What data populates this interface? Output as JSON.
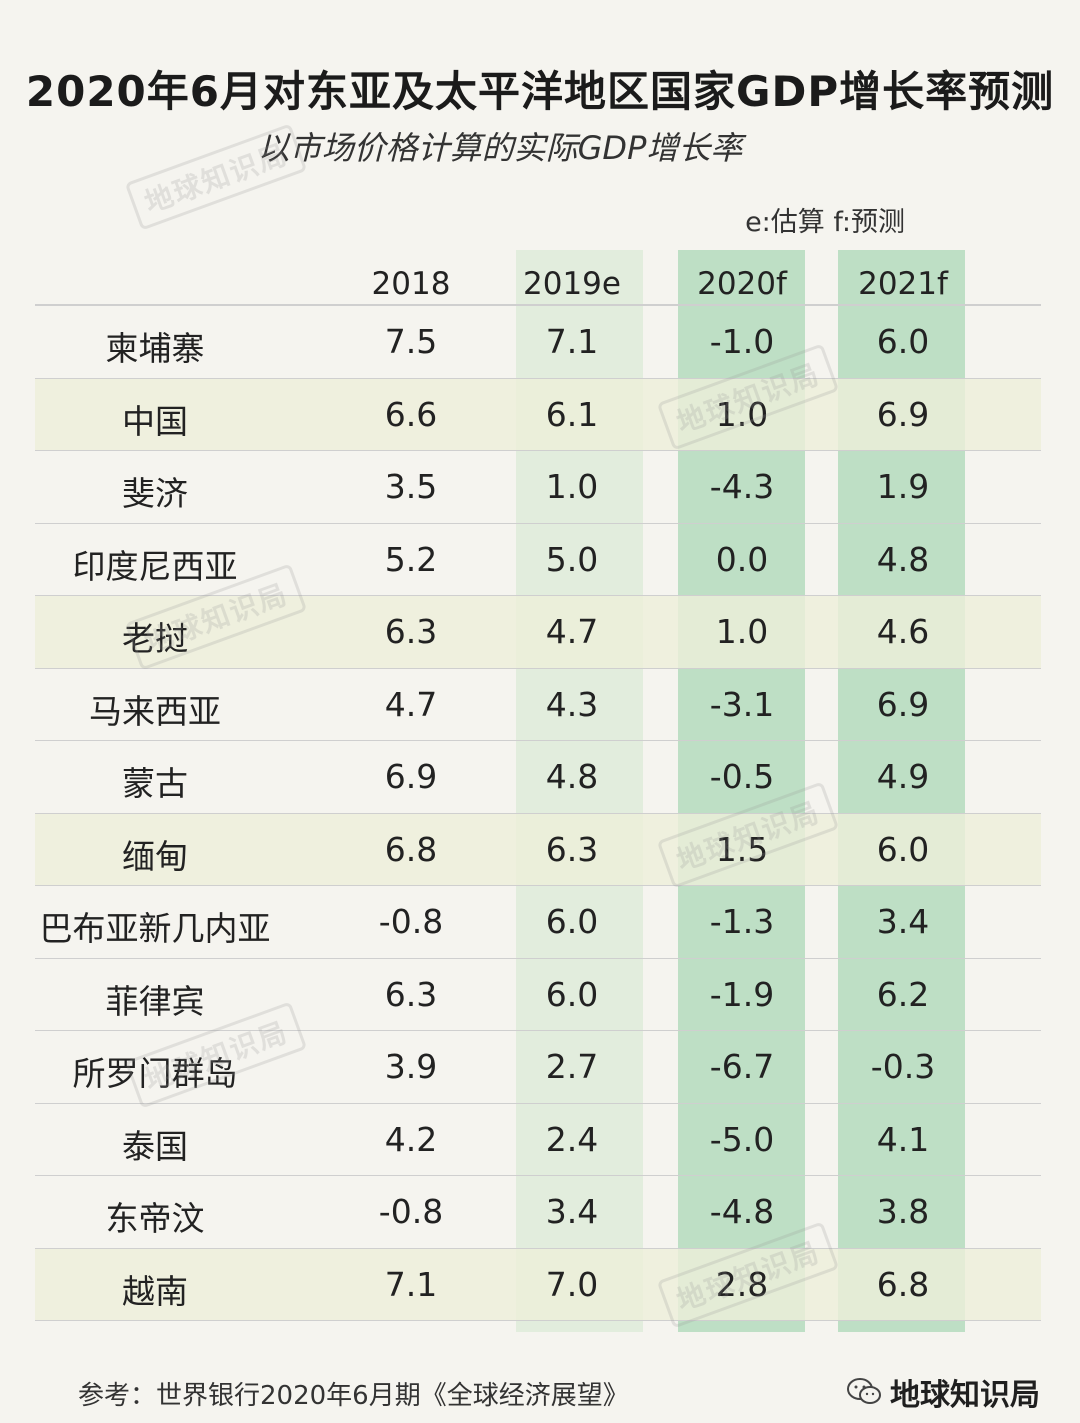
{
  "title": "2020年6月对东亚及太平洋地区国家GDP增长率预测",
  "subtitle": "以市场价格计算的实际GDP增长率",
  "note": "e:估算  f:预测",
  "watermark": "地球知识局",
  "source": "参考：世界银行2020年6月期《全球经济展望》",
  "brand": "地球知识局",
  "colors": {
    "col_2019e": "#e2eddd",
    "col_forecast": "#bedfc5",
    "row_highlight": "#eeefda"
  },
  "chart_data": {
    "type": "table",
    "columns": [
      "2018",
      "2019e",
      "2020f",
      "2021f"
    ],
    "rows": [
      {
        "name": "柬埔寨",
        "values": [
          "7.5",
          "7.1",
          "-1.0",
          "6.0"
        ]
      },
      {
        "name": "中国",
        "values": [
          "6.6",
          "6.1",
          "1.0",
          "6.9"
        ]
      },
      {
        "name": "斐济",
        "values": [
          "3.5",
          "1.0",
          "-4.3",
          "1.9"
        ]
      },
      {
        "name": "印度尼西亚",
        "values": [
          "5.2",
          "5.0",
          "0.0",
          "4.8"
        ]
      },
      {
        "name": "老挝",
        "values": [
          "6.3",
          "4.7",
          "1.0",
          "4.6"
        ]
      },
      {
        "name": "马来西亚",
        "values": [
          "4.7",
          "4.3",
          "-3.1",
          "6.9"
        ]
      },
      {
        "name": "蒙古",
        "values": [
          "6.9",
          "4.8",
          "-0.5",
          "4.9"
        ]
      },
      {
        "name": "缅甸",
        "values": [
          "6.8",
          "6.3",
          "1.5",
          "6.0"
        ]
      },
      {
        "name": "巴布亚新几内亚",
        "values": [
          "-0.8",
          "6.0",
          "-1.3",
          "3.4"
        ]
      },
      {
        "name": "菲律宾",
        "values": [
          "6.3",
          "6.0",
          "-1.9",
          "6.2"
        ]
      },
      {
        "name": "所罗门群岛",
        "values": [
          "3.9",
          "2.7",
          "-6.7",
          "-0.3"
        ]
      },
      {
        "name": "泰国",
        "values": [
          "4.2",
          "2.4",
          "-5.0",
          "4.1"
        ]
      },
      {
        "name": "东帝汶",
        "values": [
          "-0.8",
          "3.4",
          "-4.8",
          "3.8"
        ]
      },
      {
        "name": "越南",
        "values": [
          "7.1",
          "7.0",
          "2.8",
          "6.8"
        ]
      }
    ],
    "highlighted_rows": [
      "中国",
      "老挝",
      "缅甸",
      "越南"
    ]
  }
}
